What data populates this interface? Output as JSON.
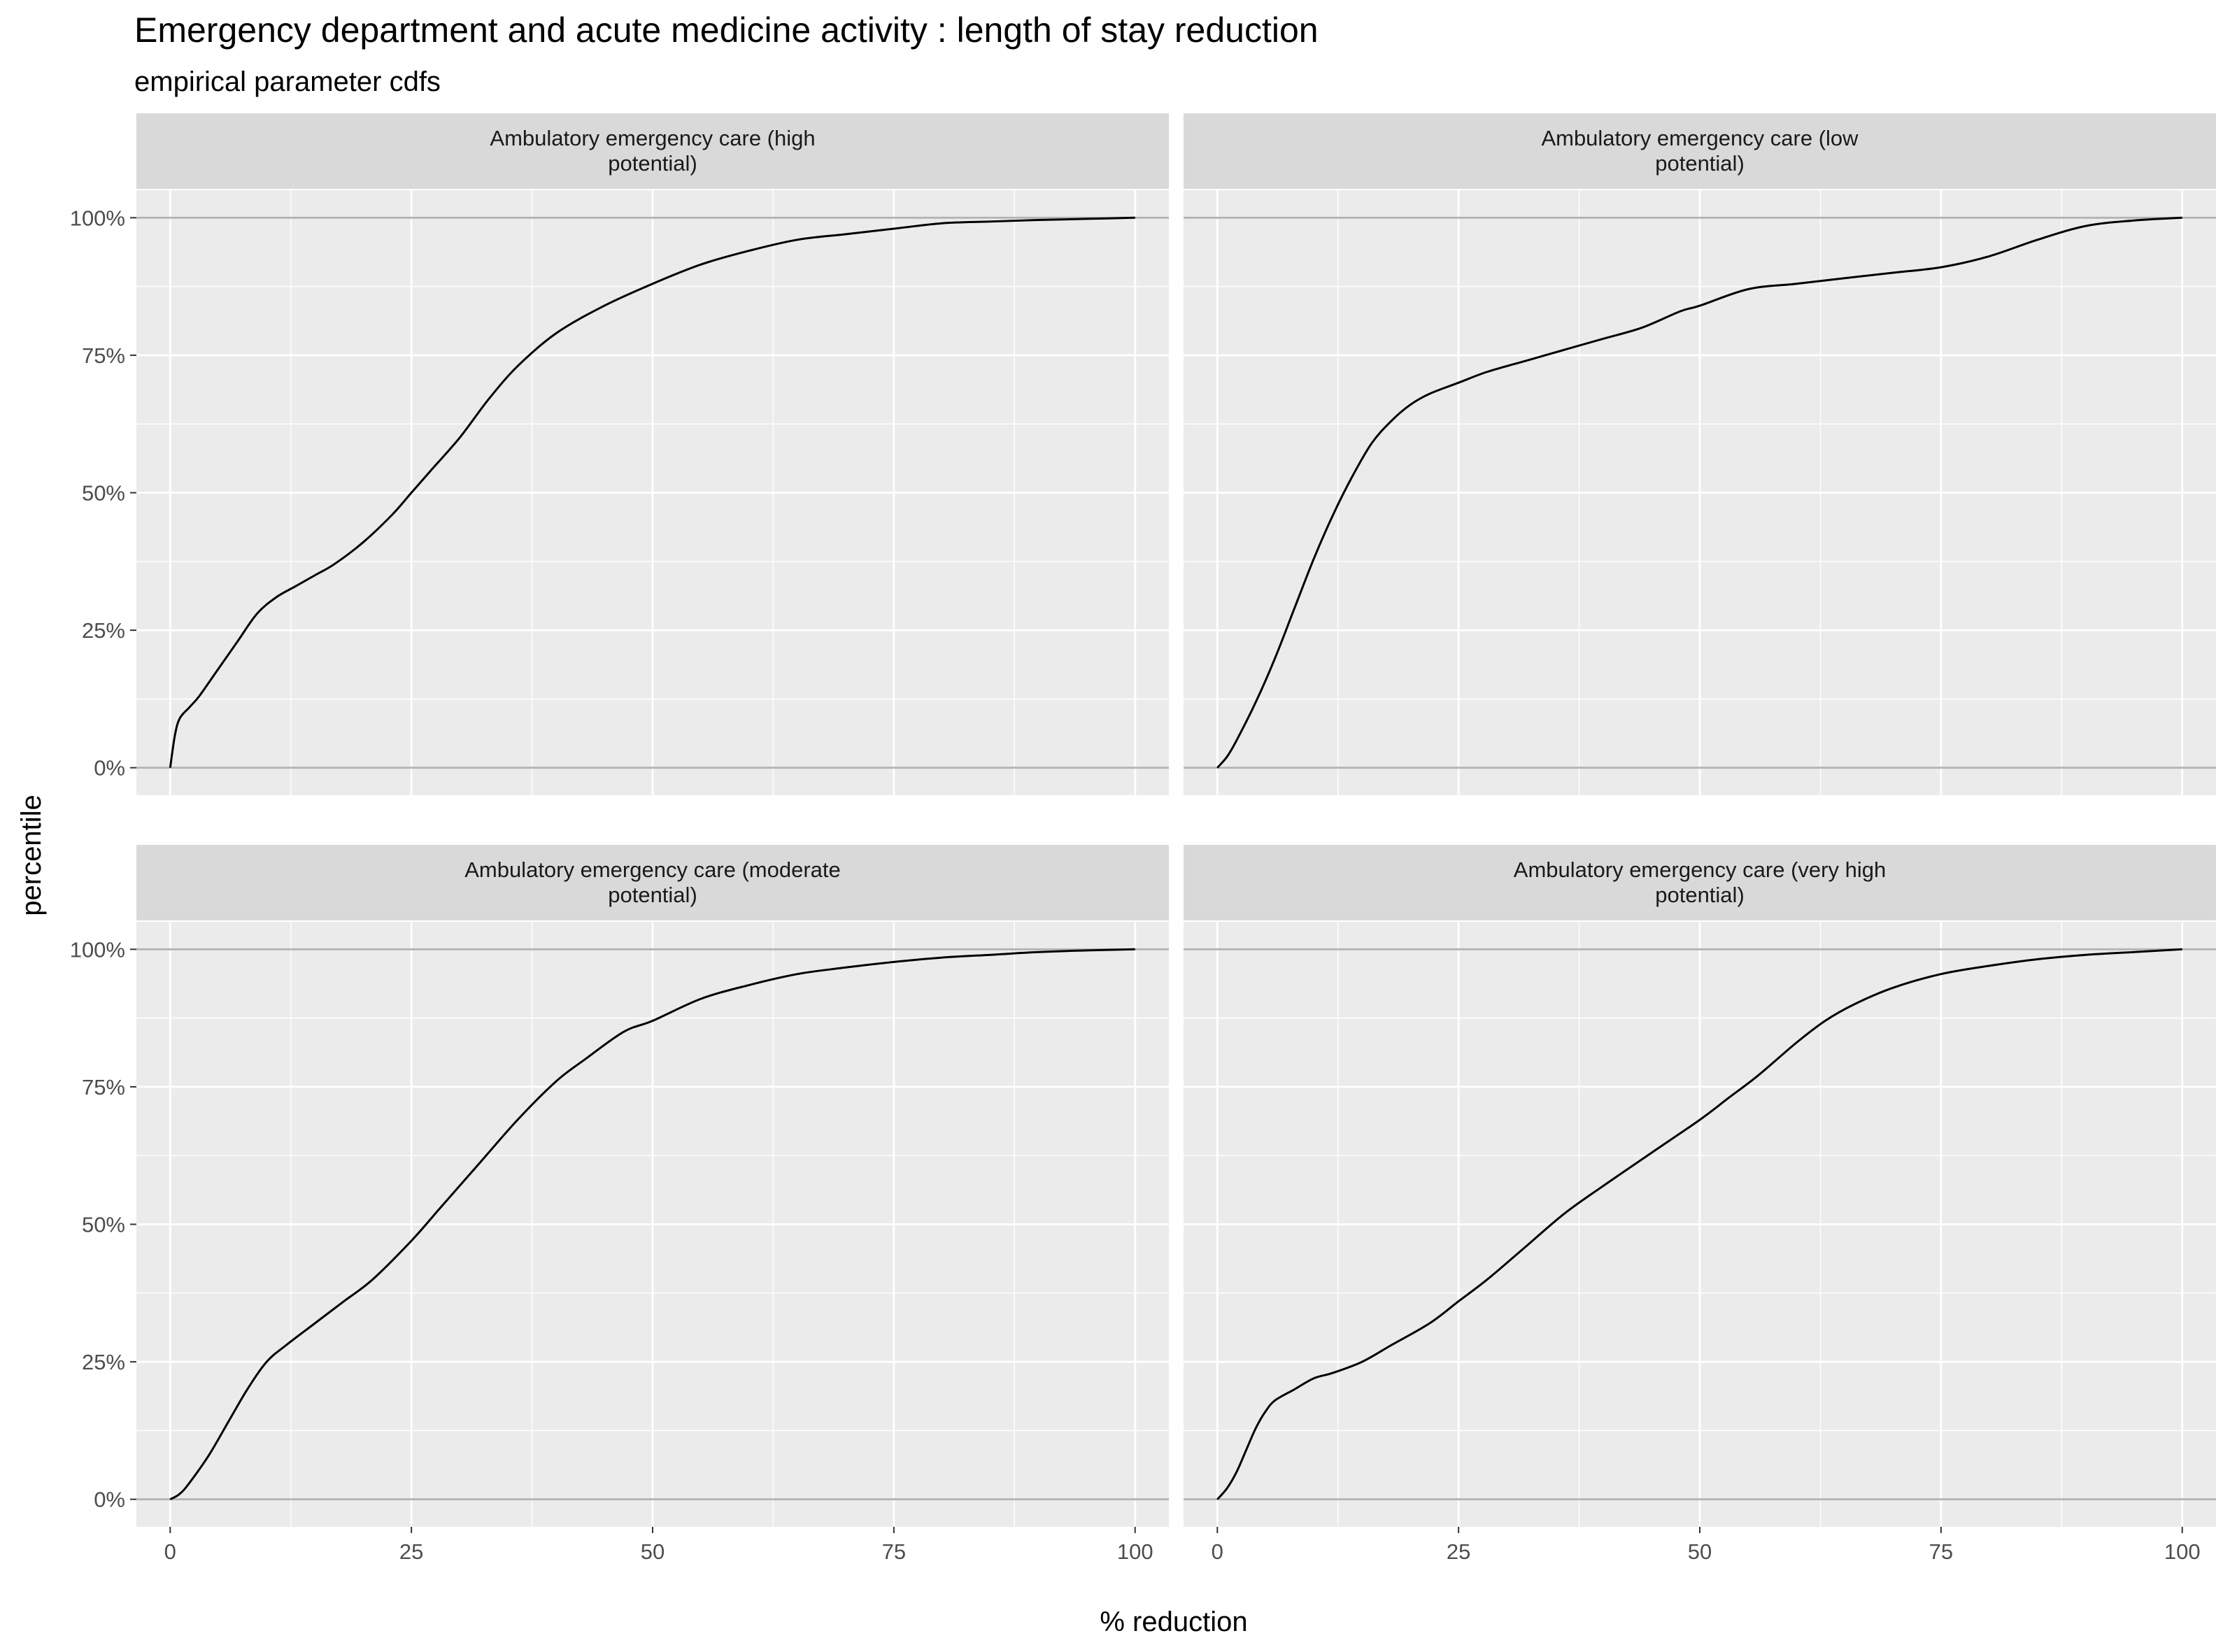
{
  "chart_data": {
    "type": "line",
    "title": "Emergency department and acute medicine activity : length of stay reduction",
    "subtitle": "empirical parameter cdfs",
    "xlabel": "% reduction",
    "ylabel": "percentile",
    "xlim": [
      -3.5,
      103.5
    ],
    "ylim": [
      -0.05,
      1.05
    ],
    "x_ticks": [
      0,
      25,
      50,
      75,
      100
    ],
    "x_tick_labels": [
      "0",
      "25",
      "50",
      "75",
      "100"
    ],
    "y_ticks": [
      0,
      0.25,
      0.5,
      0.75,
      1
    ],
    "y_tick_labels": [
      "0%",
      "25%",
      "50%",
      "75%",
      "100%"
    ],
    "grid": true,
    "line_color": "#000000",
    "panel_background": "#ebebeb",
    "strip_background": "#d9d9d9",
    "facets": [
      {
        "label_lines": [
          "Ambulatory emergency care (high",
          "potential)"
        ],
        "x": [
          0,
          0.5,
          1,
          2,
          3,
          5,
          7,
          9,
          11,
          13,
          15,
          17,
          20,
          23,
          25,
          27,
          30,
          33,
          36,
          40,
          45,
          50,
          55,
          60,
          65,
          70,
          75,
          80,
          85,
          90,
          95,
          100
        ],
        "y": [
          0,
          0.06,
          0.09,
          0.11,
          0.13,
          0.18,
          0.23,
          0.28,
          0.31,
          0.33,
          0.35,
          0.37,
          0.41,
          0.46,
          0.5,
          0.54,
          0.6,
          0.67,
          0.73,
          0.79,
          0.84,
          0.88,
          0.915,
          0.94,
          0.96,
          0.97,
          0.98,
          0.99,
          0.993,
          0.996,
          0.998,
          1
        ]
      },
      {
        "label_lines": [
          "Ambulatory emergency care (low",
          "potential)"
        ],
        "x": [
          0,
          1,
          2,
          4,
          6,
          8,
          10,
          12,
          14,
          16,
          18,
          20,
          22,
          25,
          28,
          32,
          36,
          40,
          44,
          48,
          50,
          55,
          60,
          65,
          70,
          75,
          80,
          85,
          90,
          95,
          100
        ],
        "y": [
          0,
          0.02,
          0.05,
          0.12,
          0.2,
          0.29,
          0.38,
          0.46,
          0.53,
          0.59,
          0.63,
          0.66,
          0.68,
          0.7,
          0.72,
          0.74,
          0.76,
          0.78,
          0.8,
          0.83,
          0.84,
          0.87,
          0.88,
          0.89,
          0.9,
          0.91,
          0.93,
          0.96,
          0.985,
          0.995,
          1
        ]
      },
      {
        "label_lines": [
          "Ambulatory emergency care (moderate",
          "potential)"
        ],
        "x": [
          0,
          1,
          2,
          4,
          6,
          8,
          10,
          12,
          15,
          18,
          21,
          25,
          28,
          32,
          36,
          40,
          43,
          47,
          50,
          55,
          60,
          65,
          70,
          75,
          80,
          85,
          90,
          95,
          100
        ],
        "y": [
          0,
          0.01,
          0.03,
          0.08,
          0.14,
          0.2,
          0.25,
          0.28,
          0.32,
          0.36,
          0.4,
          0.47,
          0.53,
          0.61,
          0.69,
          0.76,
          0.8,
          0.85,
          0.87,
          0.91,
          0.935,
          0.955,
          0.967,
          0.977,
          0.985,
          0.99,
          0.995,
          0.998,
          1
        ]
      },
      {
        "label_lines": [
          "Ambulatory emergency care (very high",
          "potential)"
        ],
        "x": [
          0,
          1,
          2,
          3,
          4,
          5,
          6,
          8,
          10,
          12,
          15,
          18,
          22,
          25,
          28,
          32,
          36,
          40,
          45,
          50,
          53,
          56,
          60,
          63,
          66,
          70,
          75,
          80,
          85,
          90,
          95,
          100
        ],
        "y": [
          0,
          0.02,
          0.05,
          0.09,
          0.13,
          0.16,
          0.18,
          0.2,
          0.22,
          0.23,
          0.25,
          0.28,
          0.32,
          0.36,
          0.4,
          0.46,
          0.52,
          0.57,
          0.63,
          0.69,
          0.73,
          0.77,
          0.83,
          0.87,
          0.9,
          0.93,
          0.955,
          0.97,
          0.982,
          0.99,
          0.995,
          1
        ]
      }
    ]
  }
}
